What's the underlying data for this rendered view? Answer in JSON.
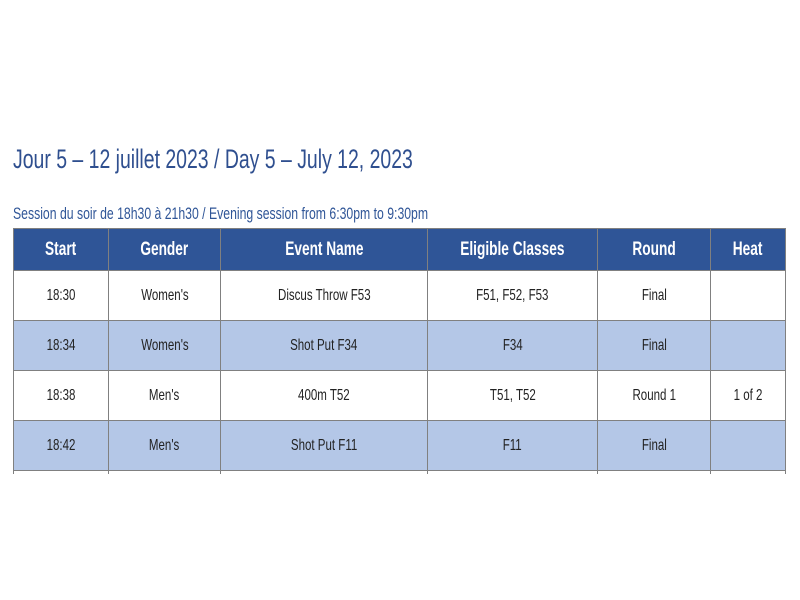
{
  "title": "Jour 5 – 12 juillet 2023 / Day 5 – July 12, 2023",
  "subtitle": "Session du soir de 18h30 à 21h30 / Evening session from 6:30pm to 9:30pm",
  "colors": {
    "header_bg": "#2f5597",
    "alt_row_bg": "#b4c7e7",
    "title": "#2f4f8f"
  },
  "table": {
    "headers": [
      "Start",
      "Gender",
      "Event Name",
      "Eligible Classes",
      "Round",
      "Heat"
    ],
    "rows": [
      [
        "18:30",
        "Women's",
        "Discus Throw F53",
        "F51, F52, F53",
        "Final",
        ""
      ],
      [
        "18:34",
        "Women's",
        "Shot Put F34",
        "F34",
        "Final",
        ""
      ],
      [
        "18:38",
        "Men's",
        "400m T52",
        "T51, T52",
        "Round 1",
        "1 of 2"
      ],
      [
        "18:42",
        "Men's",
        "Shot Put F11",
        "F11",
        "Final",
        ""
      ]
    ]
  }
}
